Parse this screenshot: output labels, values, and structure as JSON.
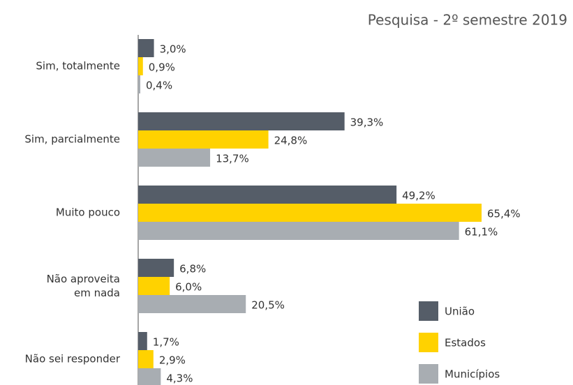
{
  "chart_data": {
    "type": "hbar",
    "title": "Pesquisa - 2º semestre 2019",
    "categories": [
      "Sim, totalmente",
      "Sim, parcialmente",
      "Muito pouco",
      "Não aproveita\nem nada",
      "Não sei responder"
    ],
    "series": [
      {
        "name": "União",
        "color": "#555d68",
        "values": [
          3.0,
          39.3,
          49.2,
          6.8,
          1.7
        ],
        "value_labels": [
          "3,0%",
          "39,3%",
          "49,2%",
          "6,8%",
          "1,7%"
        ]
      },
      {
        "name": "Estados",
        "color": "#ffd200",
        "values": [
          0.9,
          24.8,
          65.4,
          6.0,
          2.9
        ],
        "value_labels": [
          "0,9%",
          "24,8%",
          "65,4%",
          "6,0%",
          "2,9%"
        ]
      },
      {
        "name": "Municípios",
        "color": "#a8adb2",
        "values": [
          0.4,
          13.7,
          61.1,
          20.5,
          4.3
        ],
        "value_labels": [
          "0,4%",
          "13,7%",
          "61,1%",
          "20,5%",
          "4,3%"
        ]
      }
    ],
    "legend": "bottom-right"
  }
}
